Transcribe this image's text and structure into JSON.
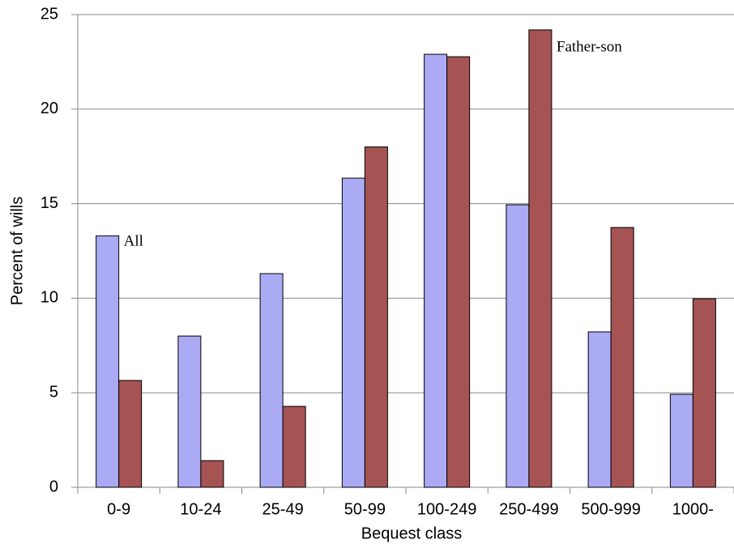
{
  "chart_data": {
    "type": "bar",
    "x_label": "Bequest class",
    "y_label": "Percent of wills",
    "categories": [
      "0-9",
      "10-24",
      "25-49",
      "50-99",
      "100-249",
      "250-499",
      "500-999",
      "1000-"
    ],
    "series": [
      {
        "name": "All",
        "color": "#aaaaf5",
        "values": [
          13.3,
          8.0,
          11.3,
          16.35,
          22.9,
          14.94,
          8.22,
          4.92
        ]
      },
      {
        "name": "Father-son",
        "color": "#a55353",
        "values": [
          5.65,
          1.41,
          4.28,
          18.0,
          22.77,
          24.19,
          13.74,
          9.97
        ]
      }
    ],
    "ylim": [
      0,
      25
    ],
    "yticks": [
      0,
      5,
      10,
      15,
      20,
      25
    ],
    "grid": true
  }
}
